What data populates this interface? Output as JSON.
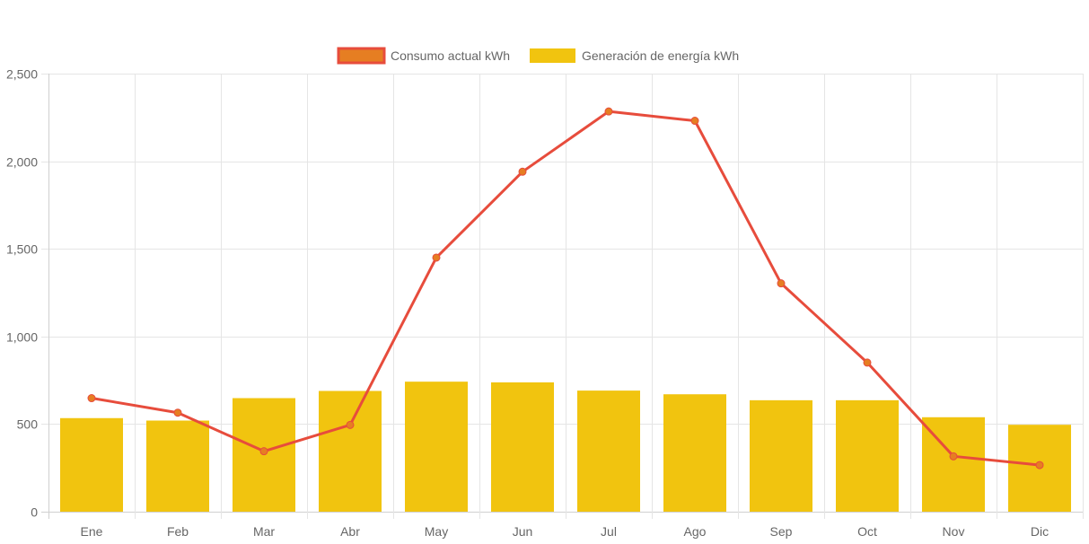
{
  "chart_data": {
    "type": "bar",
    "title": "",
    "xlabel": "",
    "ylabel": "",
    "categories": [
      "Ene",
      "Feb",
      "Mar",
      "Abr",
      "May",
      "Jun",
      "Jul",
      "Ago",
      "Sep",
      "Oct",
      "Nov",
      "Dic"
    ],
    "ylim": [
      0,
      2500
    ],
    "yticks": [
      0,
      500,
      1000,
      1500,
      2000,
      2500
    ],
    "ytick_labels": [
      "0",
      "500",
      "1,000",
      "1,500",
      "2,000",
      "2,500"
    ],
    "grid": true,
    "legend_position": "top",
    "series": [
      {
        "name": "Consumo actual kWh",
        "type": "line",
        "color": "#e74c3c",
        "point_color": "#e67e22",
        "values": [
          648,
          565,
          345,
          495,
          1450,
          1940,
          2284,
          2231,
          1303,
          851,
          316,
          266
        ]
      },
      {
        "name": "Generación de energía kWh",
        "type": "bar",
        "color": "#f1c40f",
        "values": [
          534,
          520,
          648,
          689,
          742,
          738,
          691,
          670,
          636,
          636,
          539,
          496
        ]
      }
    ]
  }
}
